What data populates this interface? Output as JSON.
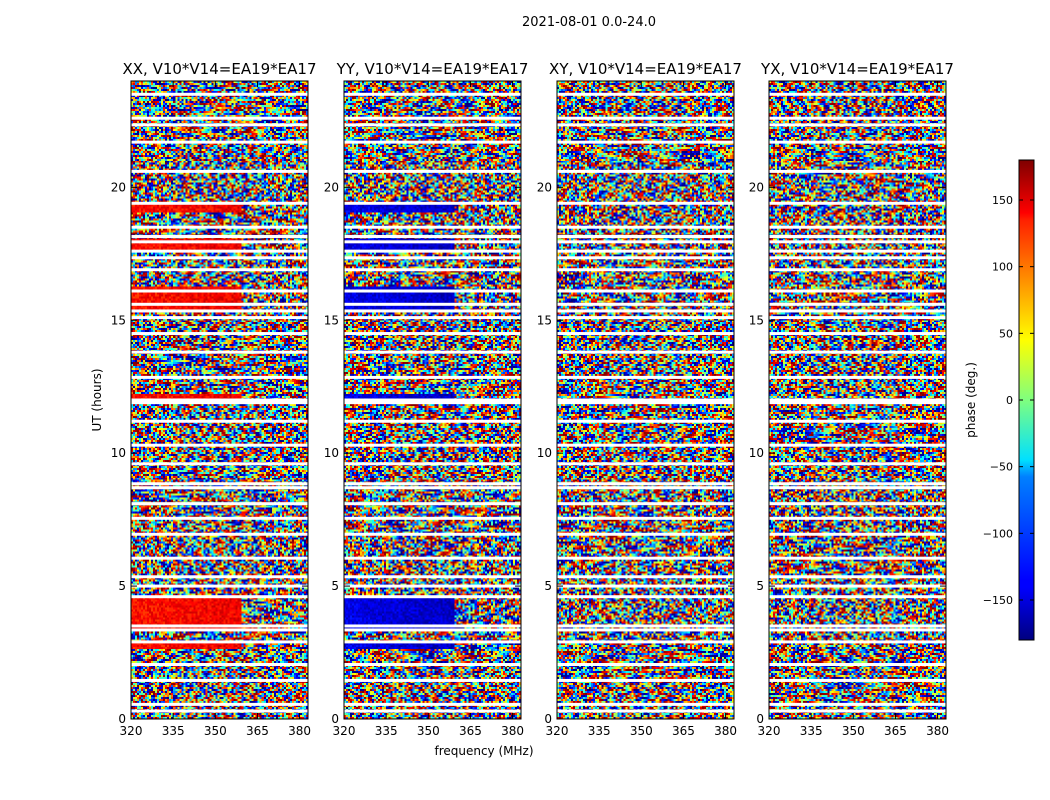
{
  "title": "2021-08-01 0.0-24.0",
  "chart_data": {
    "type": "heatmap",
    "xlabel": "frequency (MHz)",
    "ylabel": "UT (hours)",
    "xlim": [
      320,
      383
    ],
    "ylim": [
      0,
      24
    ],
    "x_ticks": [
      "320",
      "335",
      "350",
      "365",
      "380"
    ],
    "y_ticks": [
      "0",
      "5",
      "10",
      "15",
      "20"
    ],
    "x_tick_values": [
      320,
      335,
      350,
      365,
      380
    ],
    "y_tick_values": [
      0,
      5,
      10,
      15,
      20
    ],
    "panels": [
      {
        "title": "XX, V10*V14=EA19*EA17",
        "polarization": "XX",
        "warm_offset": 1
      },
      {
        "title": "YY, V10*V14=EA19*EA17",
        "polarization": "YY",
        "warm_offset": -1
      },
      {
        "title": "XY, V10*V14=EA19*EA17",
        "polarization": "XY",
        "warm_offset": 0
      },
      {
        "title": "YX, V10*V14=EA19*EA17",
        "polarization": "YX",
        "warm_offset": 0
      }
    ],
    "flagged_hours": [
      0.3,
      0.55,
      1.45,
      2.05,
      2.9,
      3.35,
      3.5,
      4.6,
      5.0,
      5.35,
      6.05,
      6.95,
      7.55,
      8.1,
      8.7,
      8.85,
      9.6,
      10.3,
      11.2,
      11.9,
      12.0,
      12.85,
      13.8,
      14.5,
      15.1,
      15.35,
      15.6,
      16.1,
      16.9,
      17.35,
      17.6,
      17.95,
      18.15,
      18.5,
      19.4,
      20.6,
      21.7,
      22.35,
      22.6,
      23.5
    ],
    "colorbar": {
      "label": "phase (deg.)",
      "range": [
        -180,
        180
      ],
      "ticks": [
        "150",
        "100",
        "50",
        "0",
        "−50",
        "−100",
        "−150"
      ],
      "tick_values": [
        150,
        100,
        50,
        0,
        -50,
        -100,
        -150
      ],
      "colormap": "jet"
    }
  }
}
